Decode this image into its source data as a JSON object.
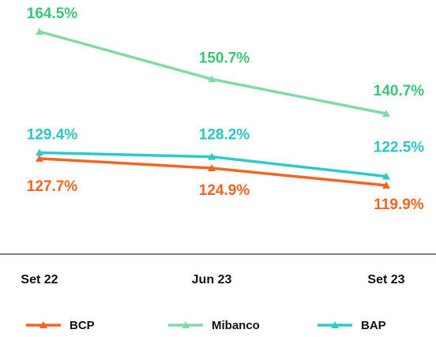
{
  "chart_data": {
    "type": "line",
    "categories": [
      "Set 22",
      "Jun 23",
      "Set 23"
    ],
    "series": [
      {
        "name": "BCP",
        "color": "#f26522",
        "values": [
          127.7,
          124.9,
          119.9
        ],
        "value_labels": [
          "127.7%",
          "124.9%",
          "119.9%"
        ]
      },
      {
        "name": "Mibanco",
        "color": "#7fdca4",
        "values": [
          164.5,
          150.7,
          140.7
        ],
        "value_labels": [
          "164.5%",
          "150.7%",
          "140.7%"
        ]
      },
      {
        "name": "BAP",
        "color": "#2ec9c9",
        "values": [
          129.4,
          128.2,
          122.5
        ],
        "value_labels": [
          "129.4%",
          "128.2%",
          "122.5%"
        ]
      }
    ]
  }
}
